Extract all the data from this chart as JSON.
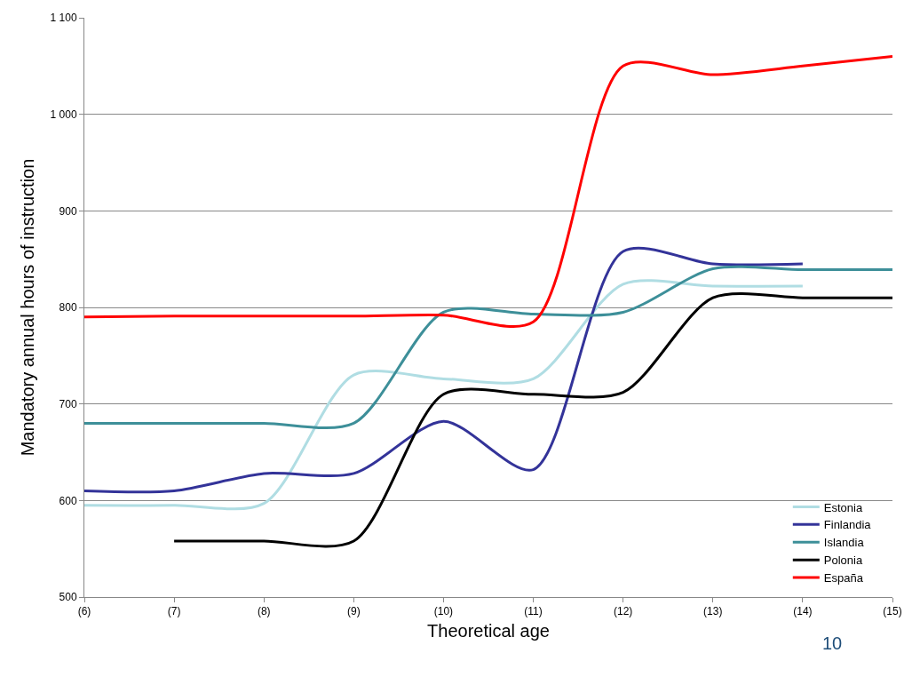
{
  "chart_data": {
    "type": "line",
    "xlabel": "Theoretical age",
    "ylabel": "Mandatory annual hours of instruction",
    "categories": [
      "(6)",
      "(7)",
      "(8)",
      "(9)",
      "(10)",
      "(11)",
      "(12)",
      "(13)",
      "(14)",
      "(15)"
    ],
    "series": [
      {
        "name": "Estonia",
        "color": "#b0dde3",
        "values": [
          595,
          595,
          597,
          730,
          726,
          726,
          824,
          822,
          822,
          null
        ]
      },
      {
        "name": "Finlandia",
        "color": "#333399",
        "values": [
          610,
          610,
          628,
          628,
          682,
          632,
          858,
          845,
          845,
          null
        ]
      },
      {
        "name": "Islandia",
        "color": "#3d8f99",
        "values": [
          680,
          680,
          680,
          680,
          795,
          793,
          795,
          840,
          839,
          839
        ]
      },
      {
        "name": "Polonia",
        "color": "#000000",
        "values": [
          null,
          558,
          558,
          558,
          710,
          710,
          712,
          810,
          810,
          810
        ]
      },
      {
        "name": "España",
        "color": "#ff0000",
        "values": [
          790,
          791,
          791,
          791,
          792,
          785,
          1050,
          1041,
          1050,
          1060
        ]
      }
    ],
    "ylim": [
      500,
      1100
    ],
    "yticks": [
      500,
      600,
      700,
      800,
      900,
      {
        "value": 1000,
        "label": "1 000"
      },
      {
        "value": 1100,
        "label": "1 100"
      }
    ],
    "grid": "y",
    "legend": "bottom right",
    "marker": "none",
    "line_style": "solid",
    "annotations": [
      "10"
    ]
  }
}
